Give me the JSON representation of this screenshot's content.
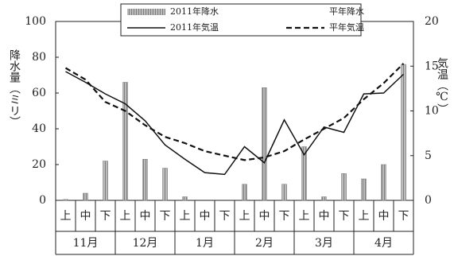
{
  "chart_data": {
    "type": "combo",
    "y_label": "降水量（ミリ）",
    "y2_label": "気温（℃）",
    "categories": [
      "上",
      "中",
      "下",
      "上",
      "中",
      "下",
      "上",
      "中",
      "下",
      "上",
      "中",
      "下",
      "上",
      "中",
      "下",
      "上",
      "中",
      "下"
    ],
    "months": [
      "11月",
      "12月",
      "1月",
      "2月",
      "3月",
      "4月"
    ],
    "ylim": [
      0,
      100
    ],
    "yticks": [
      0,
      20,
      40,
      60,
      80,
      100
    ],
    "y2lim": [
      0,
      20
    ],
    "y2ticks": [
      0,
      5,
      10,
      15,
      20
    ],
    "series": [
      {
        "name": "2011年降水",
        "kind": "bar",
        "color": "#777777",
        "values": [
          0.5,
          4,
          22,
          66,
          23,
          18,
          2,
          0,
          0,
          9,
          63,
          9,
          30,
          2,
          15,
          12,
          20,
          76
        ]
      },
      {
        "name": "平年降水",
        "kind": "bar",
        "color": "#ffffff",
        "values": [
          null,
          null,
          null,
          null,
          null,
          null,
          null,
          null,
          null,
          null,
          null,
          null,
          null,
          null,
          null,
          null,
          null,
          null
        ]
      },
      {
        "name": "2011年気温",
        "kind": "line",
        "axis": "y2",
        "color": "#111111",
        "dash": false,
        "values": [
          14.4,
          13.2,
          11.9,
          10.8,
          8.9,
          6.2,
          4.6,
          3.1,
          2.9,
          6.0,
          4.2,
          9.0,
          5.1,
          8.2,
          7.6,
          11.9,
          12.0,
          14.1
        ]
      },
      {
        "name": "平年気温",
        "kind": "line",
        "axis": "y2",
        "color": "#111111",
        "dash": true,
        "values": [
          14.8,
          13.5,
          11.0,
          10.0,
          8.4,
          7.1,
          6.4,
          5.5,
          5.0,
          4.5,
          4.8,
          5.5,
          6.8,
          8.0,
          9.2,
          11.3,
          13.1,
          15.3
        ]
      }
    ]
  }
}
